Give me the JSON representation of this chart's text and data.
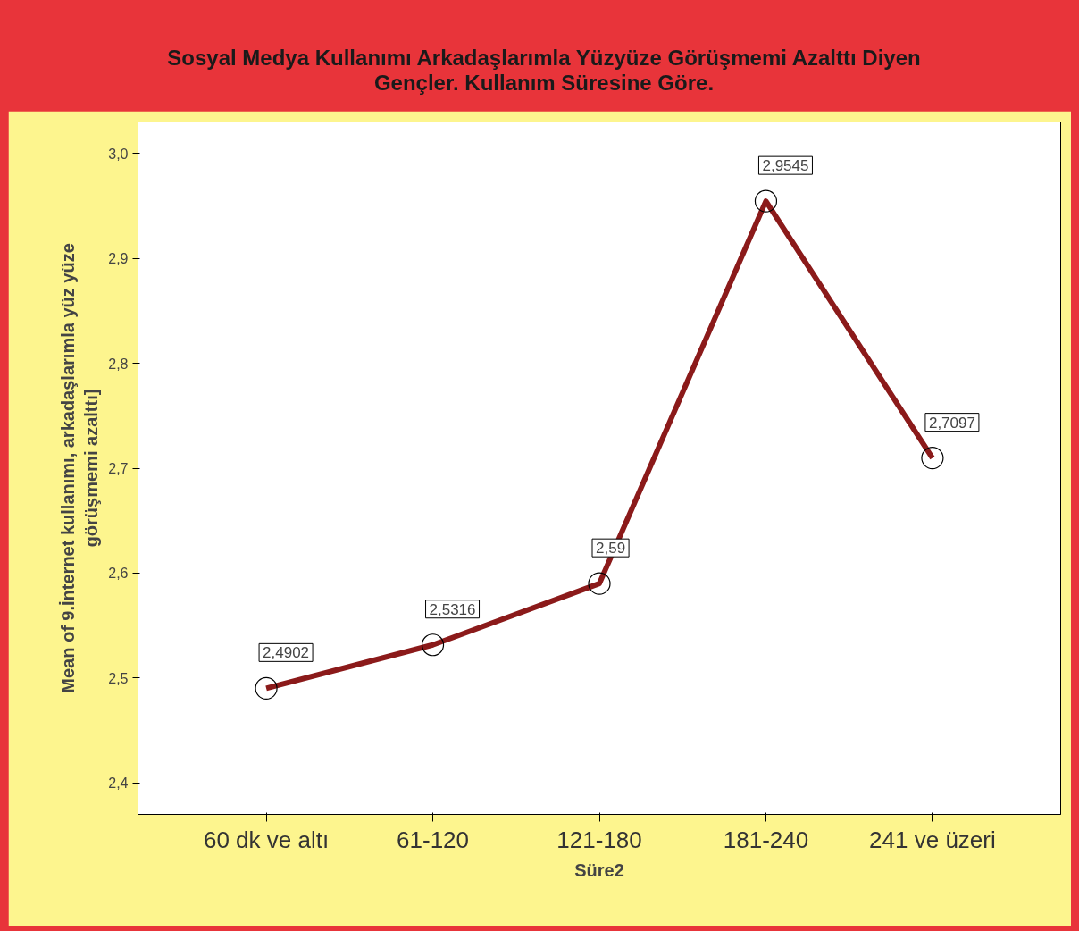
{
  "chart_data": {
    "type": "line",
    "title": "Sosyal Medya Kullanımı Arkadaşlarımla Yüzyüze Görüşmemi Azalttı Diyen\nGençler. Kullanım Süresine Göre.",
    "xlabel": "Süre2",
    "ylabel": "Mean of 9.İnternet kullanımı, arkadaşlarımla yüz yüze\ngörüşmemi azalttı]",
    "categories": [
      "60 dk ve altı",
      "61-120",
      "121-180",
      "181-240",
      "241 ve üzeri"
    ],
    "series": [
      {
        "color": "#8b1a1a",
        "values": [
          2.4902,
          2.5316,
          2.59,
          2.9545,
          2.7097
        ],
        "value_labels": [
          "2,4902",
          "2,5316",
          "2,59",
          "2,9545",
          "2,7097"
        ]
      }
    ],
    "ylim": [
      2.37,
      3.03
    ],
    "yticks": [
      {
        "value": 2.4,
        "label": "2,4"
      },
      {
        "value": 2.5,
        "label": "2,5"
      },
      {
        "value": 2.6,
        "label": "2,6"
      },
      {
        "value": 2.7,
        "label": "2,7"
      },
      {
        "value": 2.8,
        "label": "2,8"
      },
      {
        "value": 2.9,
        "label": "2,9"
      },
      {
        "value": 3.0,
        "label": "3,0"
      }
    ],
    "marker": "circle",
    "line_style": "solid",
    "grid": false
  }
}
